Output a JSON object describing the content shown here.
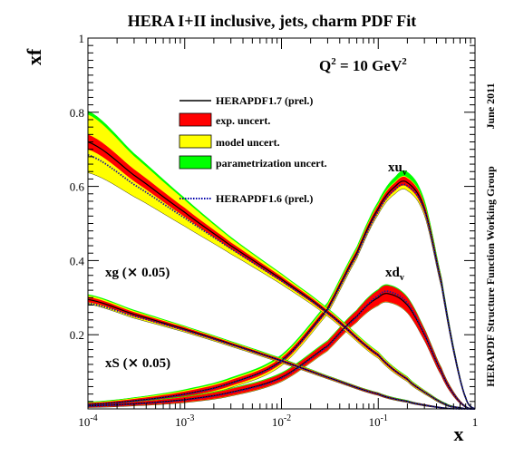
{
  "chart_data": {
    "type": "line",
    "title": "HERA I+II inclusive, jets, charm PDF Fit",
    "scale_label": {
      "main": "Q",
      "sup1": "2",
      "mid": " = 10 GeV",
      "sup2": "2"
    },
    "xlabel": "x",
    "ylabel": "xf",
    "xscale": "log",
    "xlim": [
      0.0001,
      1
    ],
    "ylim": [
      0,
      1
    ],
    "x_ticks": [
      {
        "base": "10",
        "exp": "-4",
        "value": 0.0001
      },
      {
        "base": "10",
        "exp": "-3",
        "value": 0.001
      },
      {
        "base": "10",
        "exp": "-2",
        "value": 0.01
      },
      {
        "base": "10",
        "exp": "-1",
        "value": 0.1
      },
      {
        "base": "1",
        "exp": "",
        "value": 1
      }
    ],
    "y_ticks": [
      {
        "label": "0.2",
        "value": 0.2
      },
      {
        "label": "0.4",
        "value": 0.4
      },
      {
        "label": "0.6",
        "value": 0.6
      },
      {
        "label": "0.8",
        "value": 0.8
      },
      {
        "label": "1",
        "value": 1
      }
    ],
    "legend": {
      "placement": "center",
      "entries": [
        {
          "label": "HERAPDF1.7 (prel.)",
          "style": "line",
          "color": "#000000"
        },
        {
          "label": "exp. uncert.",
          "style": "fill",
          "color": "#ff0000"
        },
        {
          "label": "model uncert.",
          "style": "fill",
          "color": "#ffff00"
        },
        {
          "label": "parametrization uncert.",
          "style": "fill",
          "color": "#00ff00"
        },
        {
          "label": "HERAPDF1.6 (prel.)",
          "style": "dotted",
          "color": "#0000aa"
        }
      ]
    },
    "colors": {
      "central": "#000000",
      "exp": "#ff0000",
      "model": "#ffff00",
      "param": "#00ff00",
      "herapdf16": "#1a1a9a"
    },
    "series": [
      {
        "label": {
          "main": "xu",
          "sub": "v"
        },
        "x": [
          0.0001,
          0.0003,
          0.001,
          0.003,
          0.01,
          0.03,
          0.06,
          0.1,
          0.15,
          0.2,
          0.3,
          0.45,
          0.6,
          0.8,
          1.0
        ],
        "central": [
          0.012,
          0.022,
          0.04,
          0.07,
          0.13,
          0.27,
          0.42,
          0.54,
          0.6,
          0.61,
          0.54,
          0.34,
          0.16,
          0.03,
          0.0
        ],
        "exp": [
          0.004,
          0.005,
          0.007,
          0.008,
          0.008,
          0.008,
          0.009,
          0.01,
          0.011,
          0.012,
          0.012,
          0.01,
          0.007,
          0.003,
          0.0
        ],
        "model": [
          0.004,
          0.006,
          0.008,
          0.009,
          0.01,
          0.01,
          0.01,
          0.01,
          0.01,
          0.01,
          0.01,
          0.009,
          0.006,
          0.002,
          0.0
        ],
        "param": [
          0.002,
          0.002,
          0.003,
          0.004,
          0.005,
          0.006,
          0.006,
          0.008,
          0.013,
          0.015,
          0.01,
          0.004,
          0.002,
          0.001,
          0.0
        ],
        "v16": [
          0.011,
          0.021,
          0.039,
          0.069,
          0.128,
          0.266,
          0.414,
          0.532,
          0.592,
          0.601,
          0.535,
          0.338,
          0.159,
          0.03,
          0.0
        ]
      },
      {
        "label": {
          "main": "xd",
          "sub": "v"
        },
        "x": [
          0.0001,
          0.0003,
          0.001,
          0.003,
          0.01,
          0.03,
          0.06,
          0.1,
          0.13,
          0.2,
          0.3,
          0.45,
          0.6,
          0.8,
          1.0
        ],
        "central": [
          0.008,
          0.014,
          0.025,
          0.045,
          0.085,
          0.17,
          0.25,
          0.3,
          0.31,
          0.28,
          0.2,
          0.1,
          0.04,
          0.006,
          0.0
        ],
        "exp": [
          0.004,
          0.005,
          0.007,
          0.009,
          0.01,
          0.012,
          0.015,
          0.02,
          0.022,
          0.02,
          0.015,
          0.01,
          0.006,
          0.002,
          0.0
        ],
        "model": [
          0.002,
          0.003,
          0.004,
          0.005,
          0.005,
          0.006,
          0.006,
          0.007,
          0.007,
          0.006,
          0.005,
          0.004,
          0.002,
          0.001,
          0.0
        ],
        "param": [
          0.001,
          0.001,
          0.002,
          0.002,
          0.003,
          0.003,
          0.003,
          0.004,
          0.004,
          0.004,
          0.003,
          0.002,
          0.001,
          0.0,
          0.0
        ],
        "v16": [
          0.007,
          0.013,
          0.024,
          0.044,
          0.083,
          0.168,
          0.248,
          0.305,
          0.316,
          0.285,
          0.202,
          0.1,
          0.04,
          0.006,
          0.0
        ]
      },
      {
        "label": {
          "main": "xg (",
          "op": "×",
          "rest": " 0.05)"
        },
        "x": [
          0.0001,
          0.0003,
          0.001,
          0.003,
          0.01,
          0.03,
          0.1,
          0.2,
          0.3,
          0.5,
          0.7,
          0.9,
          1.0
        ],
        "central": [
          0.72,
          0.63,
          0.53,
          0.44,
          0.35,
          0.26,
          0.145,
          0.08,
          0.045,
          0.012,
          0.003,
          0.0,
          0.0
        ],
        "exp": [
          0.02,
          0.016,
          0.012,
          0.009,
          0.007,
          0.006,
          0.005,
          0.004,
          0.003,
          0.002,
          0.001,
          0.0,
          0.0
        ],
        "model": [
          0.08,
          0.055,
          0.035,
          0.02,
          0.012,
          0.008,
          0.007,
          0.005,
          0.004,
          0.002,
          0.001,
          0.0,
          0.0
        ],
        "param": [
          0.01,
          0.008,
          0.006,
          0.004,
          0.003,
          0.003,
          0.002,
          0.002,
          0.001,
          0.001,
          0.0,
          0.0,
          0.0
        ],
        "v16": [
          0.685,
          0.605,
          0.515,
          0.432,
          0.345,
          0.258,
          0.145,
          0.08,
          0.045,
          0.012,
          0.003,
          0.0,
          0.0
        ]
      },
      {
        "label": {
          "main": "xS (",
          "op": "×",
          "rest": " 0.05)"
        },
        "x": [
          0.0001,
          0.0003,
          0.001,
          0.003,
          0.01,
          0.03,
          0.1,
          0.2,
          0.3,
          0.5,
          0.7,
          1.0
        ],
        "central": [
          0.295,
          0.255,
          0.215,
          0.175,
          0.13,
          0.085,
          0.04,
          0.02,
          0.01,
          0.002,
          0.0,
          0.0
        ],
        "exp": [
          0.007,
          0.006,
          0.005,
          0.004,
          0.004,
          0.003,
          0.003,
          0.002,
          0.002,
          0.001,
          0.0,
          0.0
        ],
        "model": [
          0.01,
          0.008,
          0.006,
          0.005,
          0.004,
          0.003,
          0.002,
          0.002,
          0.001,
          0.0,
          0.0,
          0.0
        ],
        "param": [
          0.003,
          0.003,
          0.002,
          0.002,
          0.002,
          0.001,
          0.001,
          0.001,
          0.0,
          0.0,
          0.0,
          0.0
        ],
        "v16": [
          0.285,
          0.25,
          0.212,
          0.173,
          0.129,
          0.085,
          0.04,
          0.02,
          0.01,
          0.002,
          0.0,
          0.0
        ]
      }
    ],
    "side_texts": [
      "June 2011",
      "HERAPDF Structure Function Working Group"
    ]
  }
}
